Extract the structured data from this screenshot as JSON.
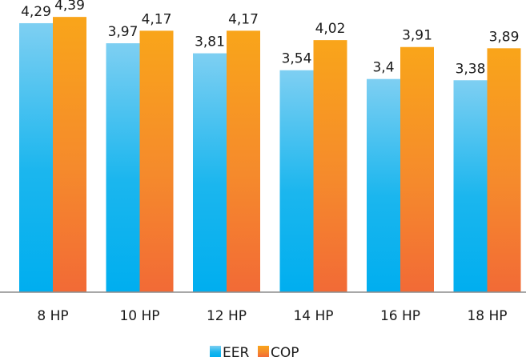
{
  "chart_data": {
    "type": "bar",
    "categories": [
      "8 HP",
      "10 HP",
      "12 HP",
      "14 HP",
      "16 HP",
      "18 HP"
    ],
    "series": [
      {
        "name": "EER",
        "values": [
          4.29,
          3.97,
          3.81,
          3.54,
          3.4,
          3.38
        ],
        "labels": [
          "4,29",
          "3,97",
          "3,81",
          "3,54",
          "3,4",
          "3,38"
        ],
        "color_top": "#7ecff2",
        "color_bottom": "#00aeef"
      },
      {
        "name": "COP",
        "values": [
          4.39,
          4.17,
          4.17,
          4.02,
          3.91,
          3.89
        ],
        "labels": [
          "4,39",
          "4,17",
          "4,17",
          "4,02",
          "3,91",
          "3,89"
        ],
        "color_top": "#f9a51a",
        "color_bottom": "#f26a36"
      }
    ],
    "ylim": [
      0,
      4.66
    ],
    "grid": false,
    "legend": "bottom-center",
    "title": "",
    "xlabel": "",
    "ylabel": ""
  }
}
